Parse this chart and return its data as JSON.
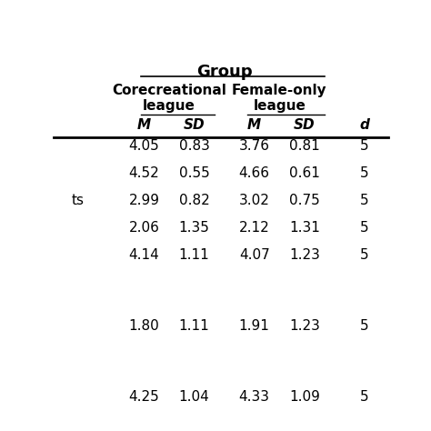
{
  "title": "Group",
  "col_groups": [
    "Corecreational\nleague",
    "Female-only\nleague"
  ],
  "col_headers": [
    "M",
    "SD",
    "M",
    "SD",
    "d"
  ],
  "rows": [
    [
      "4.05",
      "0.83",
      "3.76",
      "0.81",
      "5"
    ],
    [
      "4.52",
      "0.55",
      "4.66",
      "0.61",
      "5"
    ],
    [
      "2.99",
      "0.82",
      "3.02",
      "0.75",
      "5"
    ],
    [
      "2.06",
      "1.35",
      "2.12",
      "1.31",
      "5"
    ],
    [
      "4.14",
      "1.11",
      "4.07",
      "1.23",
      "5"
    ],
    [
      "",
      "",
      "",
      "",
      ""
    ],
    [
      "1.80",
      "1.11",
      "1.91",
      "1.23",
      "5"
    ],
    [
      "",
      "",
      "",
      "",
      ""
    ],
    [
      "4.25",
      "1.04",
      "4.33",
      "1.09",
      "5"
    ]
  ],
  "row_labels": [
    "",
    "",
    "ts",
    "",
    "",
    "",
    "",
    "",
    ""
  ],
  "background_color": "#ffffff",
  "text_color": "#000000",
  "figsize": [
    4.74,
    4.74
  ],
  "dpi": 100
}
